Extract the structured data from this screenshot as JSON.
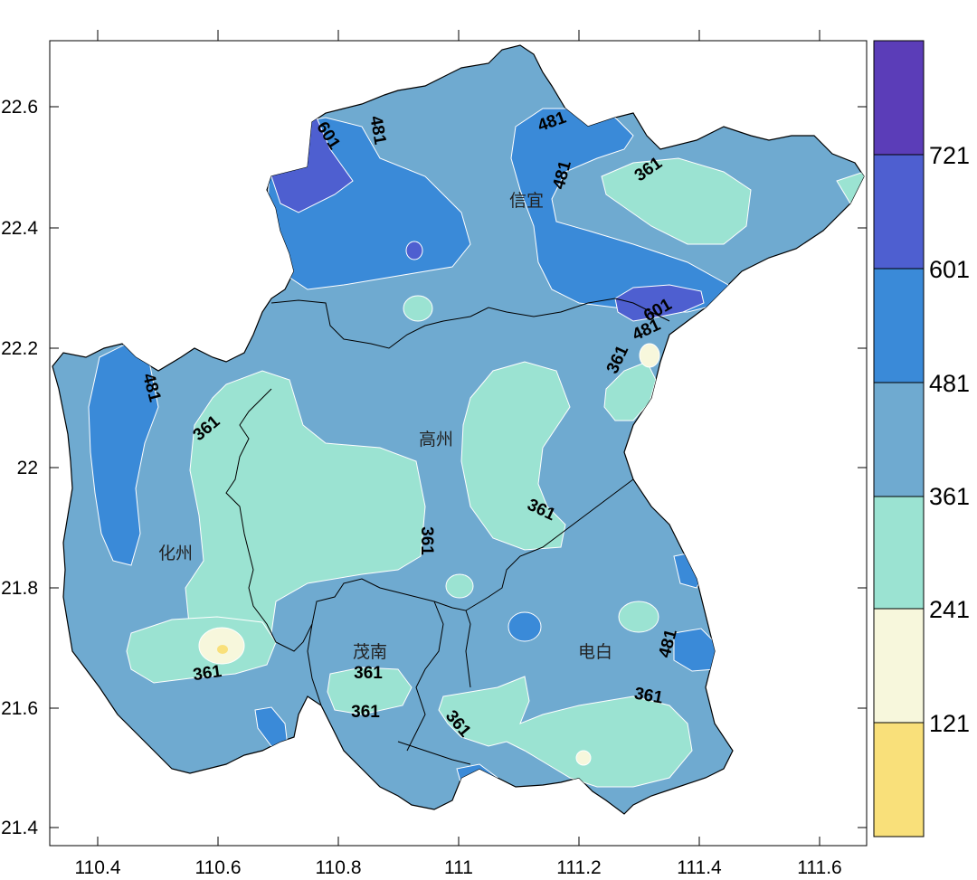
{
  "x_ticks": [
    "110.4",
    "110.6",
    "110.8",
    "111",
    "111.2",
    "111.4",
    "111.6"
  ],
  "y_ticks": [
    "22.6",
    "22.4",
    "22.2",
    "22",
    "21.8",
    "21.6",
    "21.4"
  ],
  "legend": {
    "colors": [
      "#5B3DB8",
      "#4E5FD0",
      "#3A8AD8",
      "#6FAAD0",
      "#9BE3D2",
      "#F7F7DC",
      "#F9E07A"
    ],
    "labels": [
      "721",
      "601",
      "481",
      "361",
      "241",
      "121"
    ]
  },
  "places": [
    "信宜",
    "高州",
    "化州",
    "茂南",
    "电白"
  ],
  "contour_labels": [
    "601",
    "481",
    "481",
    "481",
    "361",
    "601",
    "481",
    "361",
    "481",
    "361",
    "361",
    "361",
    "361",
    "361",
    "361",
    "361",
    "481",
    "361"
  ]
}
